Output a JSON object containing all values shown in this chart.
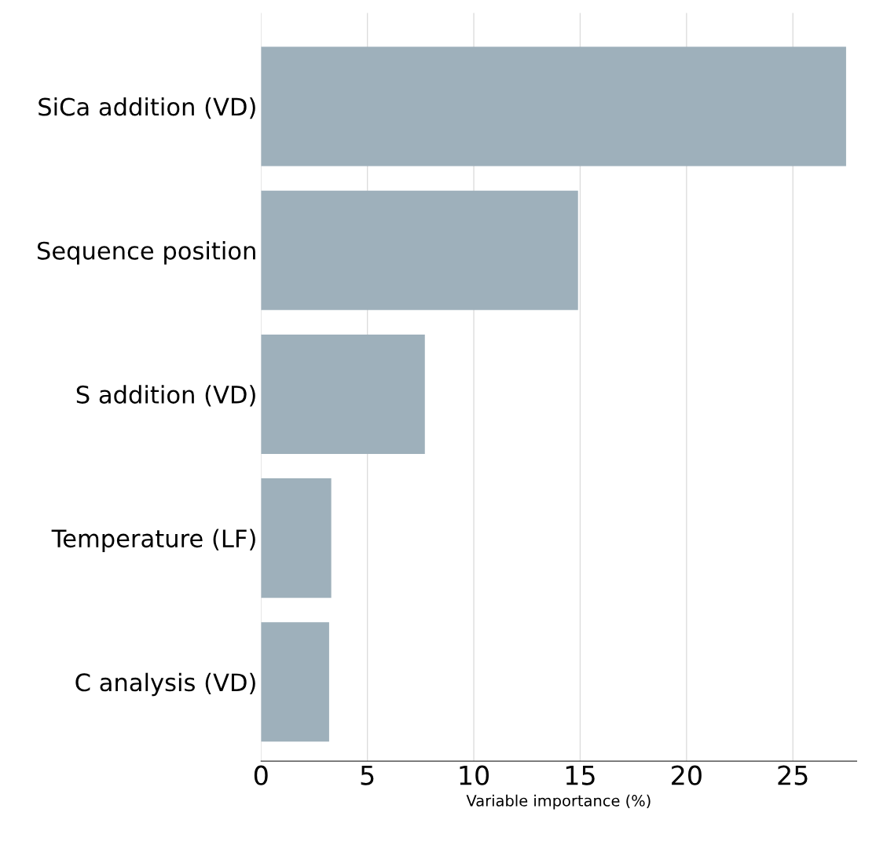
{
  "chart_data": {
    "type": "bar",
    "orientation": "horizontal",
    "xlabel": "Variable importance (%)",
    "categories": [
      "SiCa addition (VD)",
      "Sequence position",
      "S addition (VD)",
      "Temperature (LF)",
      "C analysis (VD)"
    ],
    "values": [
      27.5,
      14.9,
      7.7,
      3.3,
      3.2
    ],
    "color": "#9eb0bb",
    "xlim": [
      0,
      28
    ],
    "xticks": [
      0,
      5,
      10,
      15,
      20,
      25
    ],
    "grid": "x",
    "legend": false
  }
}
